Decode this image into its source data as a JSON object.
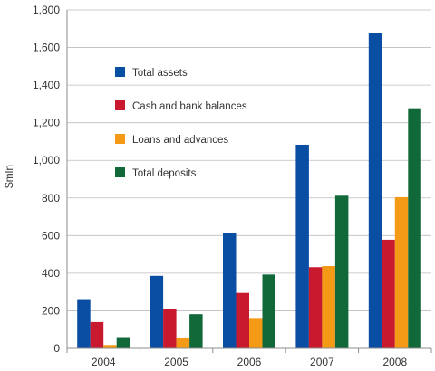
{
  "chart_data": {
    "type": "bar",
    "ylabel": "$mln",
    "categories": [
      "2004",
      "2005",
      "2006",
      "2007",
      "2008"
    ],
    "ylim": [
      0,
      1800
    ],
    "yticks": [
      0,
      200,
      400,
      600,
      800,
      1000,
      1200,
      1400,
      1600,
      1800
    ],
    "ytick_labels": [
      "0",
      "200",
      "400",
      "600",
      "800",
      "1,000",
      "1,200",
      "1,400",
      "1,600",
      "1,800"
    ],
    "grid": "horizontal",
    "legend_position": "top-left",
    "series": [
      {
        "name": "Total assets",
        "color": "#0a4ea3",
        "values": [
          262,
          386,
          614,
          1083,
          1675
        ]
      },
      {
        "name": "Cash and bank balances",
        "color": "#c8192e",
        "values": [
          140,
          210,
          295,
          432,
          578
        ]
      },
      {
        "name": "Loans and advances",
        "color": "#f59a16",
        "values": [
          18,
          58,
          162,
          438,
          804
        ]
      },
      {
        "name": "Total deposits",
        "color": "#11693a",
        "values": [
          60,
          182,
          393,
          812,
          1277
        ]
      }
    ]
  }
}
